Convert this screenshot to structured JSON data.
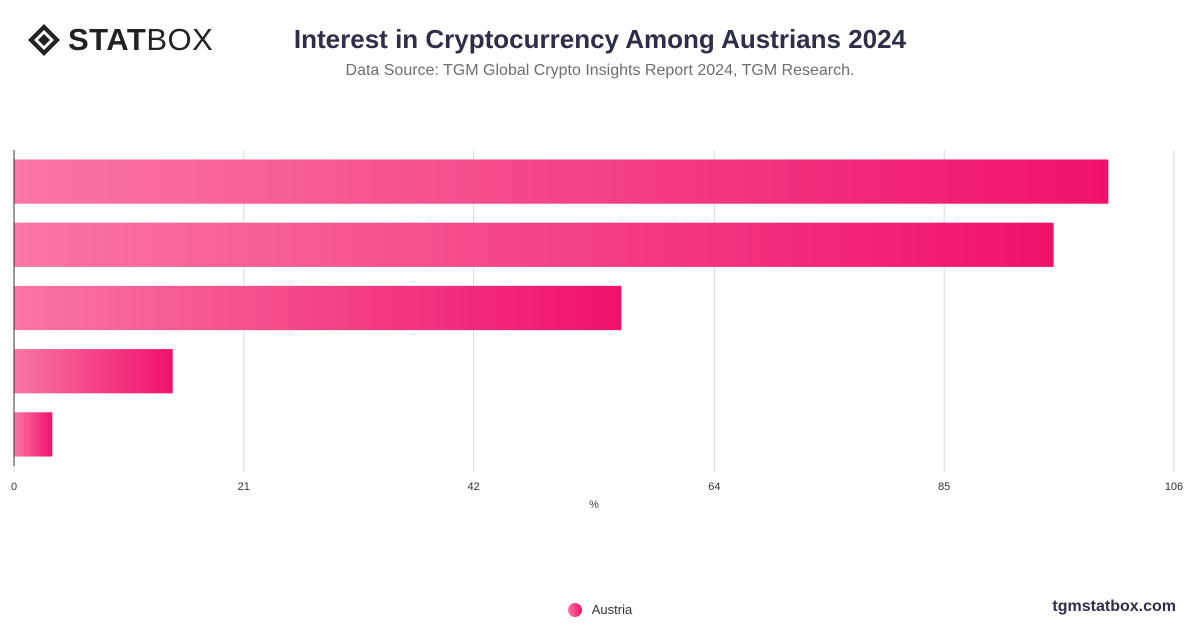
{
  "logo": {
    "bold": "STAT",
    "light": "BOX"
  },
  "header": {
    "title": "Interest in Cryptocurrency Among Austrians 2024",
    "subtitle": "Data Source: TGM Global Crypto Insights Report 2024, TGM Research."
  },
  "legend": {
    "label": "Austria"
  },
  "brand": {
    "url_text": "tgmstatbox.com"
  },
  "colors": {
    "bar_start": "#f976a6",
    "bar_end": "#f0126a",
    "grid": "#d9d9d9",
    "axis": "#333333"
  },
  "chart_data": {
    "type": "bar",
    "orientation": "horizontal",
    "title": "Interest in Cryptocurrency Among Austrians 2024",
    "xlabel": "%",
    "ylabel": "",
    "xlim": [
      0,
      106
    ],
    "x_ticks": [
      0,
      21,
      42,
      64,
      85,
      106
    ],
    "grid": true,
    "legend_position": "bottom-center",
    "series": [
      {
        "name": "Austria",
        "values": [
          100,
          95,
          55.5,
          14.5,
          3.5
        ]
      }
    ]
  }
}
